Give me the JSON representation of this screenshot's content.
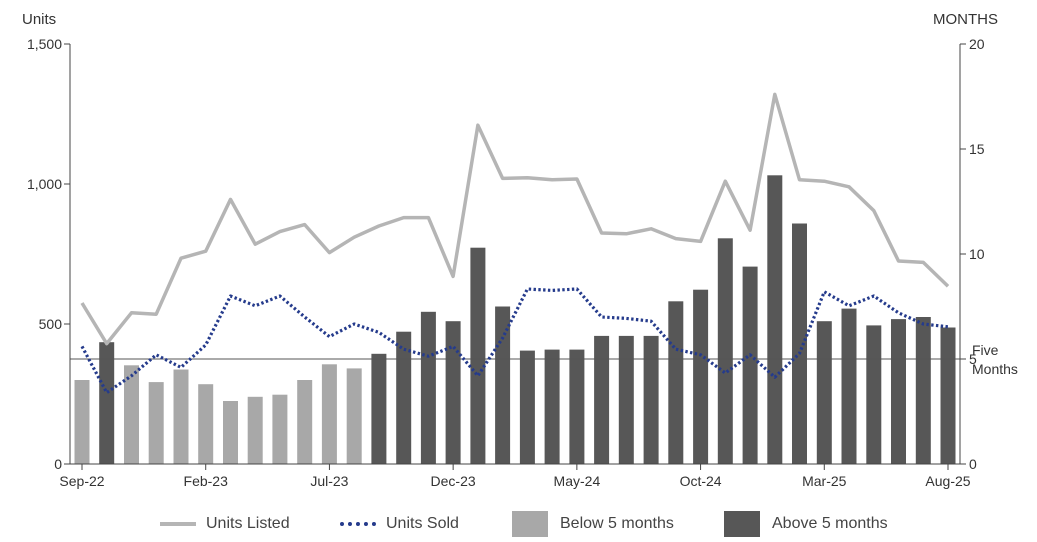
{
  "chart_data": {
    "type": "bar",
    "y_left_label": "Units",
    "y_right_label": "MONTHS",
    "y_left_ticks": [
      "0",
      "500",
      "1,000",
      "1,500"
    ],
    "y_right_ticks": [
      "0",
      "5",
      "10",
      "15",
      "20"
    ],
    "ylim_left": [
      0,
      1500
    ],
    "ylim_right": [
      0,
      20
    ],
    "x_tick_labels": [
      {
        "index": 0,
        "label": "Sep-22"
      },
      {
        "index": 5,
        "label": "Feb-23"
      },
      {
        "index": 10,
        "label": "Jul-23"
      },
      {
        "index": 15,
        "label": "Dec-23"
      },
      {
        "index": 20,
        "label": "May-24"
      },
      {
        "index": 25,
        "label": "Oct-24"
      },
      {
        "index": 30,
        "label": "Mar-25"
      },
      {
        "index": 35,
        "label": "Aug-25"
      }
    ],
    "categories": [
      "Sep-22",
      "Oct-22",
      "Nov-22",
      "Dec-22",
      "Jan-23",
      "Feb-23",
      "Mar-23",
      "Apr-23",
      "May-23",
      "Jun-23",
      "Jul-23",
      "Aug-23",
      "Sep-23",
      "Oct-23",
      "Nov-23",
      "Dec-23",
      "Jan-24",
      "Feb-24",
      "Mar-24",
      "Apr-24",
      "May-24",
      "Jun-24",
      "Jul-24",
      "Aug-24",
      "Sep-24",
      "Oct-24",
      "Nov-24",
      "Dec-24",
      "Jan-25",
      "Feb-25",
      "Mar-25",
      "Apr-25",
      "May-25",
      "Jun-25",
      "Jul-25",
      "Aug-25"
    ],
    "bars": {
      "months_supply": [
        4.0,
        5.8,
        4.7,
        3.9,
        4.5,
        3.8,
        3.0,
        3.2,
        3.3,
        4.0,
        4.75,
        4.55,
        5.25,
        6.3,
        7.25,
        6.8,
        10.3,
        7.5,
        5.4,
        5.45,
        5.45,
        6.1,
        6.1,
        6.1,
        7.75,
        8.3,
        10.75,
        9.4,
        13.75,
        11.45,
        6.8,
        7.4,
        6.6,
        6.9,
        7.0,
        6.5
      ],
      "colors_by_threshold": {
        "below": "#a8a8a8",
        "above": "#575757"
      },
      "threshold": 5
    },
    "series": [
      {
        "name": "Units Listed",
        "axis": "left",
        "style": "solid",
        "color": "#b5b5b5",
        "values": [
          575,
          430,
          540,
          535,
          735,
          760,
          945,
          785,
          830,
          855,
          755,
          810,
          850,
          880,
          880,
          670,
          1210,
          1020,
          1022,
          1015,
          1018,
          825,
          822,
          840,
          805,
          795,
          1010,
          835,
          1320,
          1015,
          1010,
          990,
          905,
          725,
          720,
          635
        ]
      },
      {
        "name": "Units Sold",
        "axis": "left",
        "style": "dotted",
        "color": "#253b8c",
        "values": [
          420,
          255,
          315,
          390,
          345,
          425,
          600,
          565,
          600,
          525,
          455,
          500,
          470,
          410,
          385,
          420,
          315,
          450,
          625,
          620,
          625,
          525,
          520,
          510,
          410,
          390,
          325,
          390,
          310,
          395,
          615,
          565,
          600,
          540,
          500,
          490
        ]
      }
    ],
    "reference_line": {
      "value_months": 5,
      "label_lines": [
        "Five",
        "Months"
      ]
    },
    "legend": {
      "position": "bottom",
      "items": [
        {
          "label": "Units Listed",
          "kind": "solid-line",
          "color": "#b5b5b5"
        },
        {
          "label": "Units Sold",
          "kind": "dotted-line",
          "color": "#253b8c"
        },
        {
          "label": "Below 5 months",
          "kind": "box",
          "color": "#a8a8a8"
        },
        {
          "label": "Above 5 months",
          "kind": "box",
          "color": "#575757"
        }
      ]
    }
  }
}
